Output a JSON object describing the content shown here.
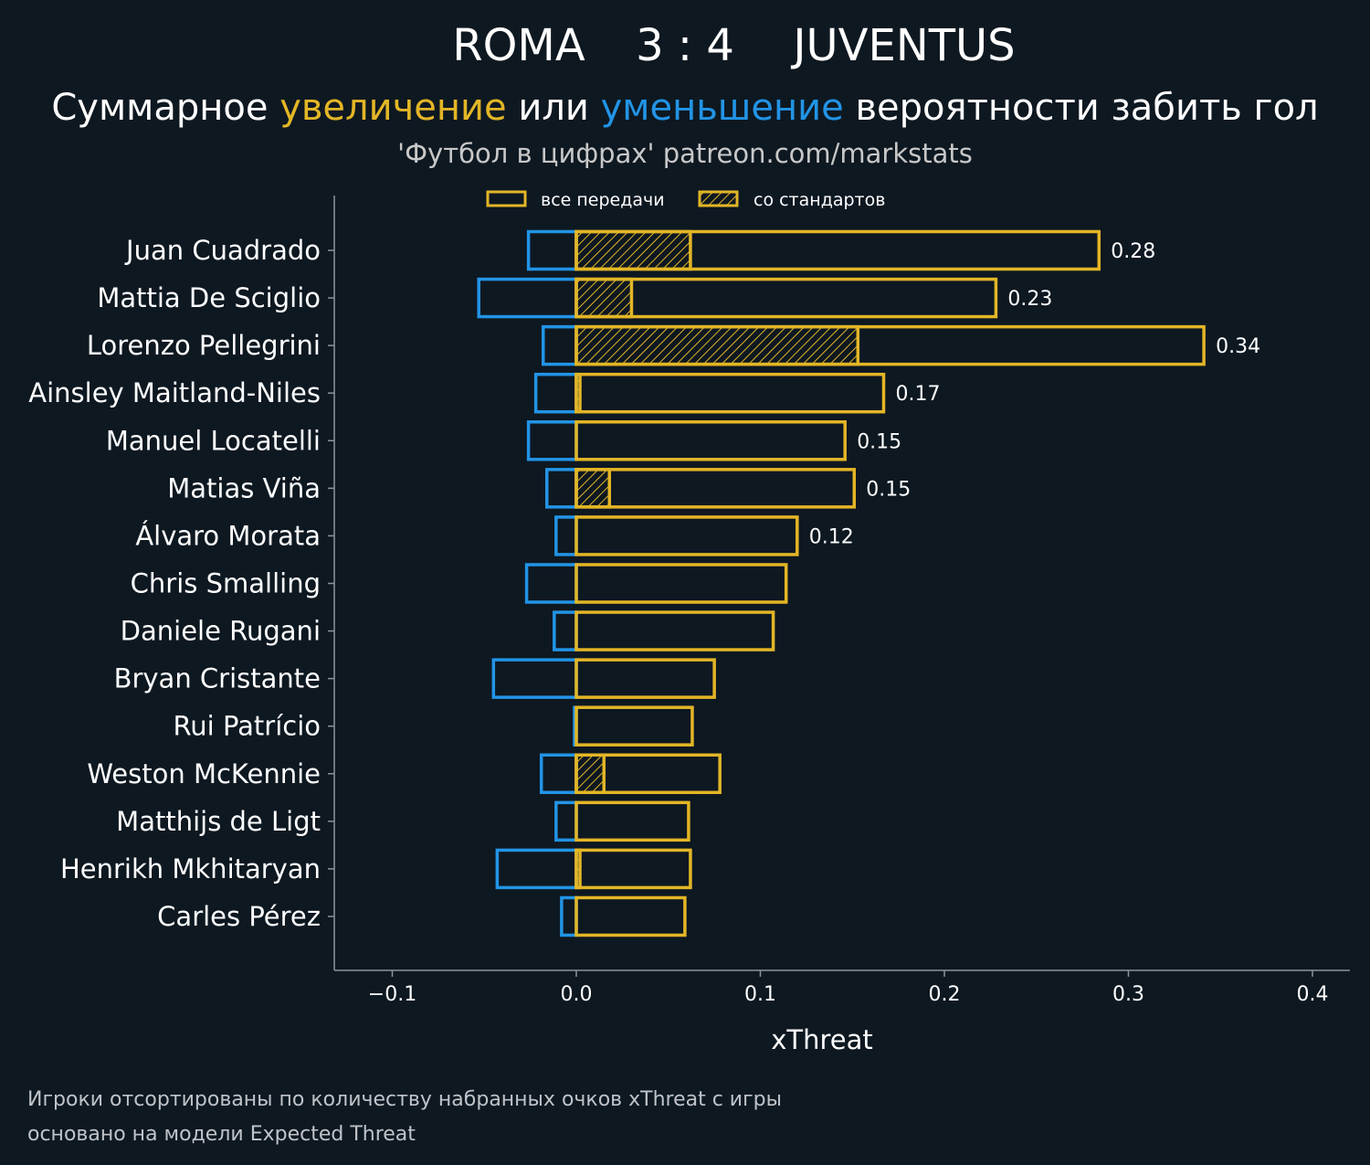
{
  "colors": {
    "background": "#0e1821",
    "increase": "#e3b626",
    "decrease": "#2294e6",
    "axis": "#8a9499",
    "text": "#ffffff",
    "muted": "#c8c8c8"
  },
  "header": {
    "home_team": "ROMA",
    "score": "3 : 4",
    "away_team": "JUVENTUS",
    "subtitle_part1": "Суммарное ",
    "subtitle_increase": "увеличение",
    "subtitle_part2": " или ",
    "subtitle_decrease": "уменьшение",
    "subtitle_part3": " вероятности забить гол",
    "credit": "'Футбол в цифрах' patreon.com/markstats"
  },
  "legend": {
    "all_passes": "все передачи",
    "set_pieces": "со стандартов"
  },
  "footnote": {
    "line1": "Игроки отсортированы по количеству набранных очков xThreat с игры",
    "line2": "основано на модели Expected Threat"
  },
  "chart_data": {
    "type": "bar",
    "orientation": "horizontal",
    "xlabel": "xThreat",
    "xlim": [
      -0.13,
      0.42
    ],
    "xticks": [
      -0.1,
      0.0,
      0.1,
      0.2,
      0.3,
      0.4
    ],
    "xtick_labels": [
      "−0.1",
      "0.0",
      "0.1",
      "0.2",
      "0.3",
      "0.4"
    ],
    "categories": [
      "Juan Cuadrado",
      "Mattia De Sciglio",
      "Lorenzo Pellegrini",
      "Ainsley Maitland-Niles",
      "Manuel Locatelli",
      "Matias Viña",
      "Álvaro Morata",
      "Chris Smalling",
      "Daniele Rugani",
      "Bryan Cristante",
      "Rui Patrício",
      "Weston McKennie",
      "Matthijs de Ligt",
      "Henrikh Mkhitaryan",
      "Carles Pérez"
    ],
    "series": [
      {
        "name": "все передачи",
        "positive": [
          0.284,
          0.228,
          0.341,
          0.167,
          0.146,
          0.151,
          0.12,
          0.114,
          0.107,
          0.075,
          0.063,
          0.078,
          0.061,
          0.062,
          0.059
        ],
        "negative": [
          -0.026,
          -0.053,
          -0.018,
          -0.022,
          -0.026,
          -0.016,
          -0.011,
          -0.027,
          -0.012,
          -0.045,
          -0.001,
          -0.019,
          -0.011,
          -0.043,
          -0.008
        ]
      },
      {
        "name": "со стандартов",
        "positive": [
          0.062,
          0.03,
          0.153,
          0.002,
          0.0,
          0.018,
          0.0,
          0.0,
          0.0,
          0.0,
          0.0,
          0.015,
          0.0,
          0.002,
          0.0
        ]
      }
    ],
    "value_labels": [
      "0.28",
      "0.23",
      "0.34",
      "0.17",
      "0.15",
      "0.15",
      "0.12",
      null,
      null,
      null,
      null,
      null,
      null,
      null,
      null
    ]
  }
}
